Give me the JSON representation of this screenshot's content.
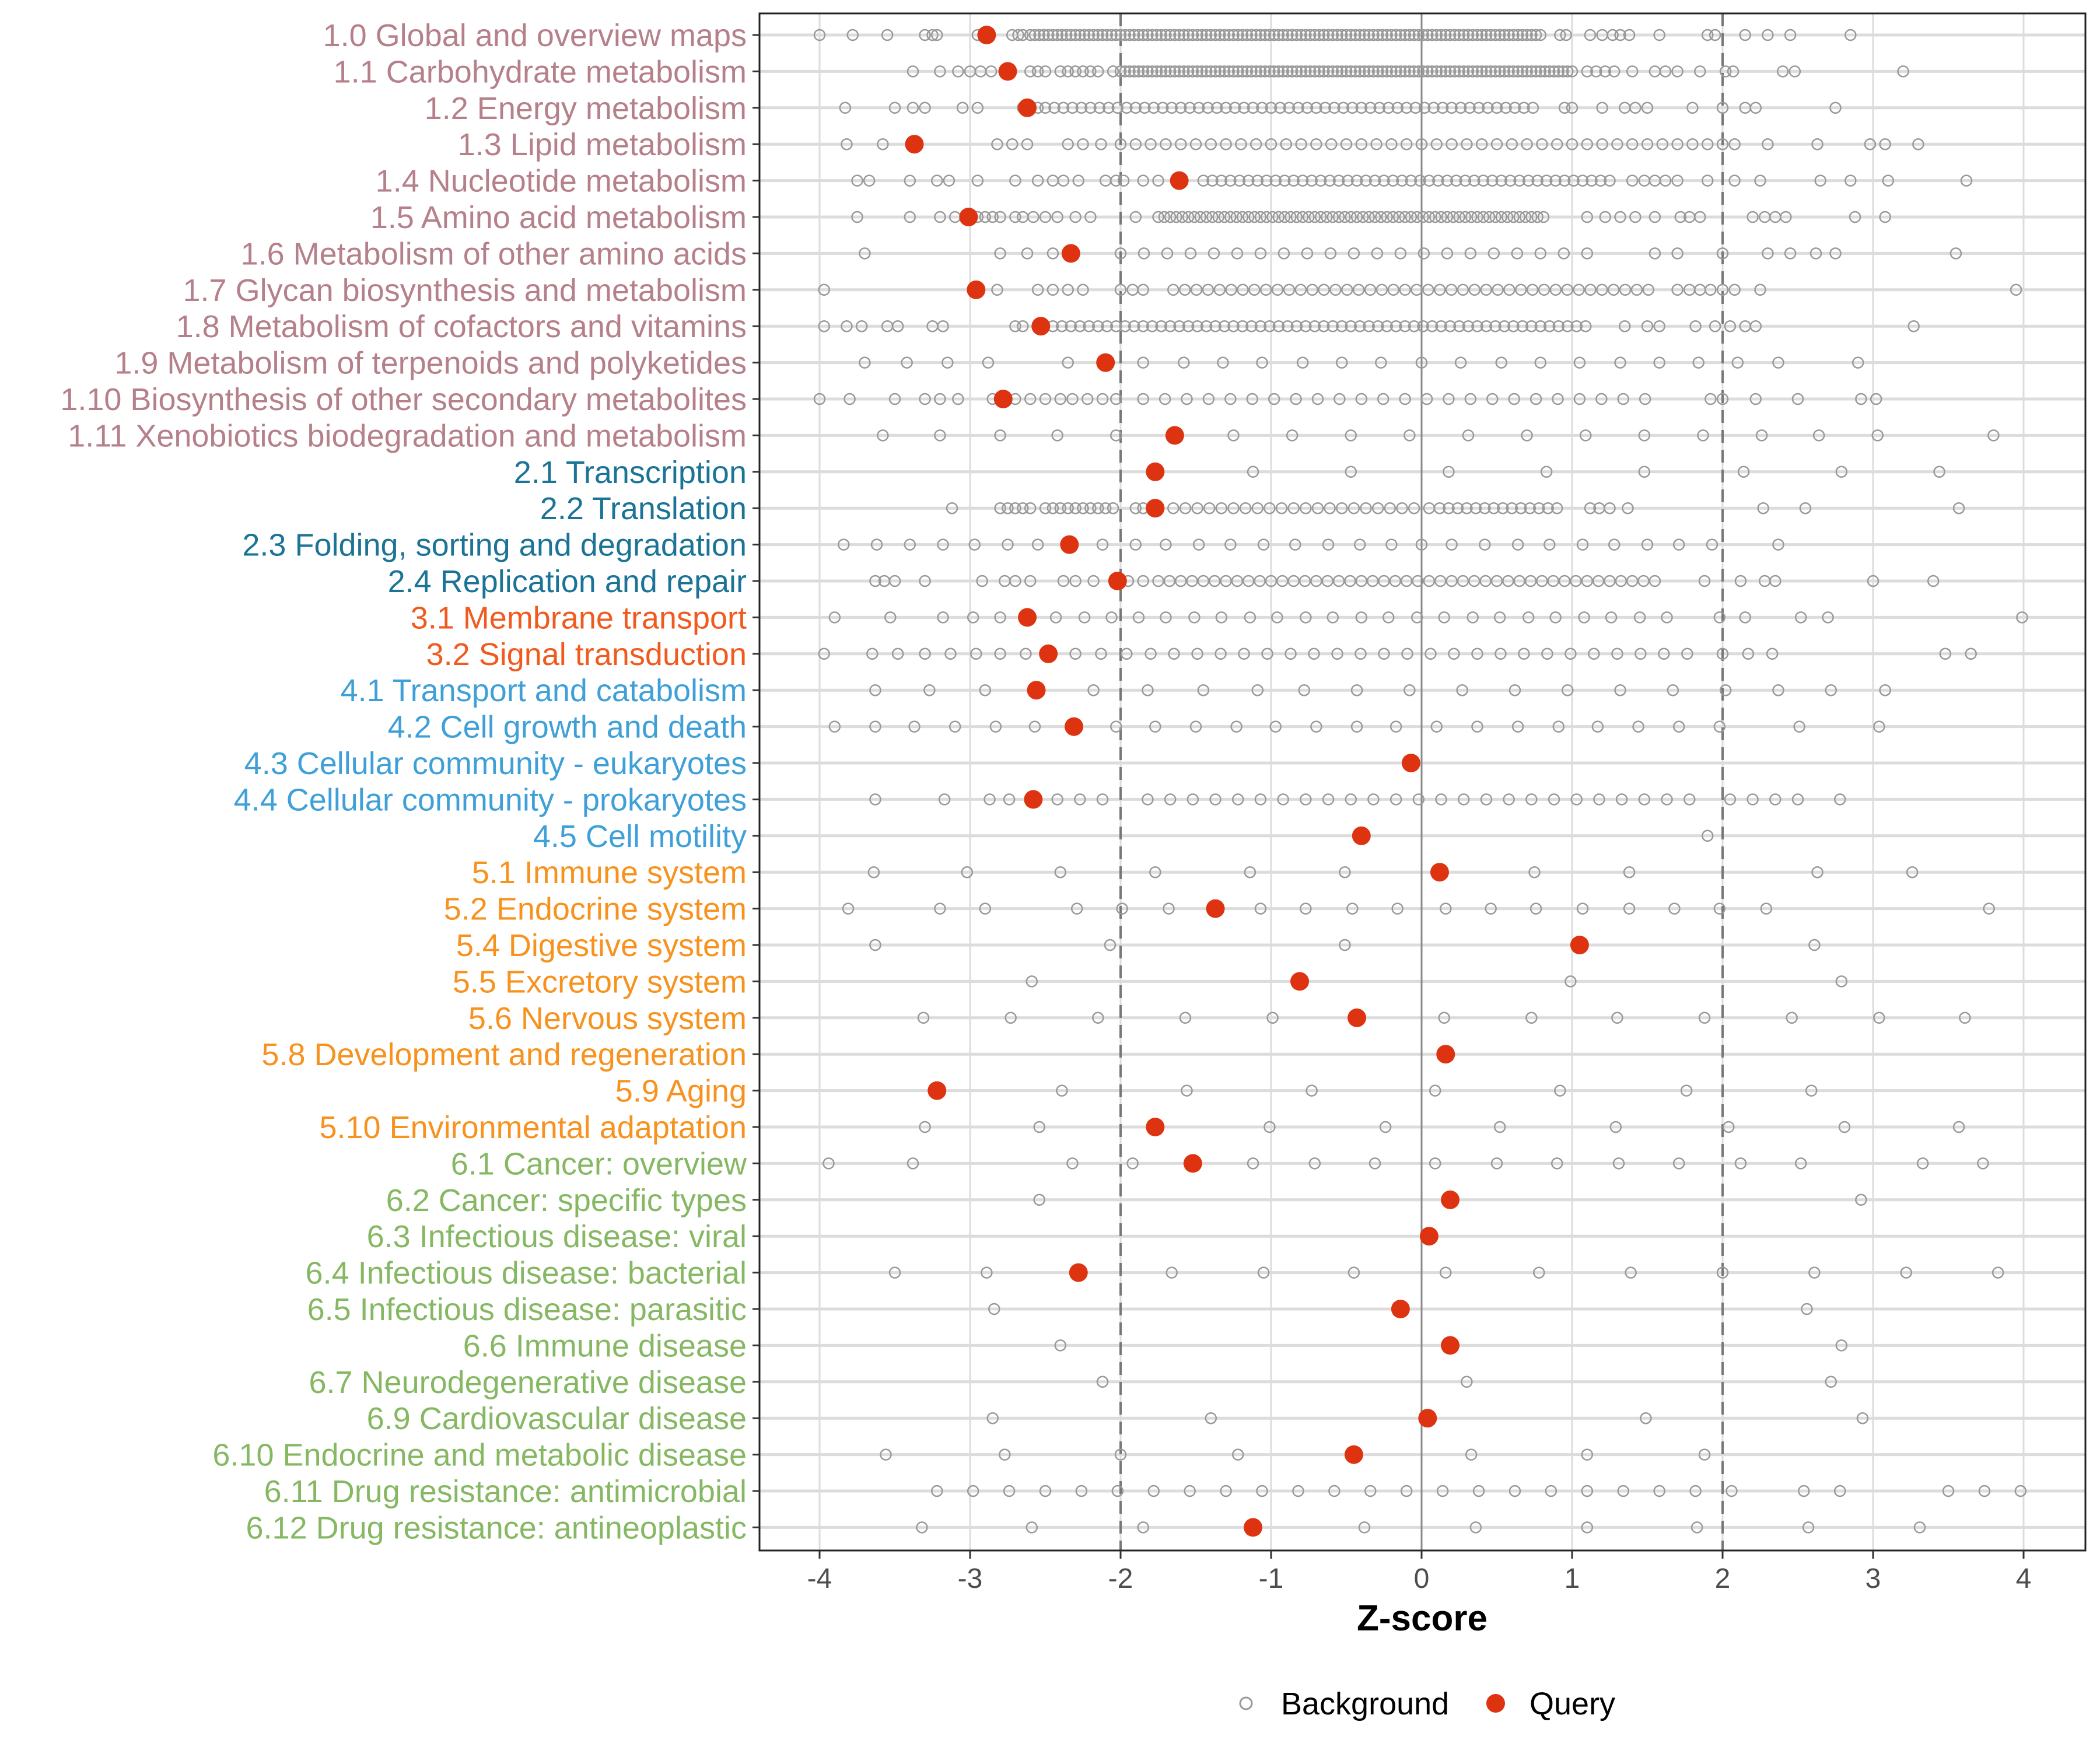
{
  "chart_data": {
    "type": "scatter",
    "xlabel": "Z-score",
    "xlim": [
      -4.2,
      4.2
    ],
    "xticks": [
      "-4",
      "-3",
      "-2",
      "-1",
      "0",
      "1",
      "2",
      "3",
      "4"
    ],
    "reference_lines": {
      "dashed": [
        -2,
        2
      ],
      "solid": [
        0
      ]
    },
    "grid": true,
    "legend": {
      "position": "bottom",
      "entries": [
        "Background",
        "Query"
      ]
    },
    "colors": {
      "background": "#999999",
      "query": "#dd3311",
      "groups": {
        "1": "#b5808a",
        "2": "#1b7396",
        "3": "#f05a1e",
        "4": "#3fa0d8",
        "5": "#f7921e",
        "6": "#86b863"
      }
    },
    "rows": [
      {
        "label": "1.0 Global and overview maps",
        "group": "1",
        "query": -2.89,
        "background": [
          -4.0,
          -3.78,
          -3.55,
          -3.3,
          -3.25,
          -3.22,
          -2.95,
          -2.72,
          -2.68,
          -2.65,
          0.92,
          0.96,
          1.12,
          1.2,
          1.27,
          1.32,
          1.38,
          1.58,
          1.9,
          1.95,
          2.15,
          2.3,
          2.45,
          2.85
        ],
        "dense": [
          [
            -2.6,
            0.8,
            0.03
          ]
        ]
      },
      {
        "label": "1.1 Carbohydrate metabolism",
        "group": "1",
        "query": -2.75,
        "background": [
          -3.38,
          -3.2,
          -3.08,
          -3.0,
          -2.93,
          -2.86,
          -2.6,
          -2.55,
          -2.5,
          -2.4,
          -2.35,
          -2.3,
          -2.25,
          -2.2,
          -2.15,
          -2.05,
          1.1,
          1.16,
          1.22,
          1.28,
          1.4,
          1.55,
          1.62,
          1.7,
          1.85,
          2.02,
          2.07,
          2.4,
          2.48,
          3.2
        ],
        "dense": [
          [
            -2.0,
            1.0,
            0.03
          ]
        ]
      },
      {
        "label": "1.2 Energy metabolism",
        "group": "1",
        "query": -2.62,
        "background": [
          -3.83,
          -3.5,
          -3.38,
          -3.3,
          -3.05,
          -2.95,
          -2.65,
          -2.55,
          0.95,
          1.0,
          1.2,
          1.35,
          1.42,
          1.5,
          1.8,
          2.0,
          2.15,
          2.22,
          2.75
        ],
        "dense": [
          [
            -2.5,
            0.75,
            0.06
          ]
        ]
      },
      {
        "label": "1.3 Lipid metabolism",
        "group": "1",
        "query": -3.37,
        "background": [
          -3.82,
          -3.58,
          -2.82,
          -2.72,
          -2.62,
          -2.35,
          -2.25,
          -2.13,
          -2.0,
          2.08,
          2.3,
          2.63,
          2.98,
          3.08,
          3.3
        ],
        "dense": [
          [
            -1.9,
            2.0,
            0.1
          ]
        ]
      },
      {
        "label": "1.4 Nucleotide metabolism",
        "group": "1",
        "query": -1.61,
        "background": [
          -3.75,
          -3.67,
          -3.4,
          -3.22,
          -3.14,
          -2.95,
          -2.7,
          -2.55,
          -2.45,
          -2.38,
          -2.28,
          -2.1,
          -2.03,
          -1.98,
          -1.85,
          -1.75,
          1.4,
          1.48,
          1.55,
          1.62,
          1.7,
          1.9,
          2.08,
          2.25,
          2.65,
          2.85,
          3.1,
          3.62
        ],
        "dense": [
          [
            -1.45,
            1.25,
            0.06
          ]
        ]
      },
      {
        "label": "1.5 Amino acid metabolism",
        "group": "1",
        "query": -3.01,
        "background": [
          -3.75,
          -3.4,
          -3.2,
          -3.1,
          -2.95,
          -2.9,
          -2.85,
          -2.8,
          -2.7,
          -2.65,
          -2.58,
          -2.5,
          -2.42,
          -2.3,
          -2.2,
          -1.9,
          1.1,
          1.22,
          1.32,
          1.42,
          1.55,
          1.72,
          1.78,
          1.85,
          2.2,
          2.28,
          2.35,
          2.42,
          2.88,
          3.08
        ],
        "dense": [
          [
            -1.75,
            0.82,
            0.04
          ]
        ]
      },
      {
        "label": "1.6 Metabolism of other amino acids",
        "group": "1",
        "query": -2.33,
        "background": [
          -3.7,
          -2.8,
          -2.62,
          -2.45,
          1.55,
          1.7,
          2.0,
          2.3,
          2.45,
          2.62,
          2.75,
          3.55
        ],
        "dense": [
          [
            -2.0,
            1.25,
            0.155
          ]
        ]
      },
      {
        "label": "1.7 Glycan biosynthesis and metabolism",
        "group": "1",
        "query": -2.96,
        "background": [
          -3.97,
          -2.82,
          -2.55,
          -2.45,
          -2.35,
          -2.25,
          -2.0,
          -1.92,
          -1.85,
          1.7,
          1.78,
          1.85,
          1.92,
          2.0,
          2.08,
          2.25,
          3.95
        ],
        "dense": [
          [
            -1.65,
            1.55,
            0.077
          ]
        ]
      },
      {
        "label": "1.8 Metabolism of cofactors and vitamins",
        "group": "1",
        "query": -2.53,
        "background": [
          -3.97,
          -3.82,
          -3.72,
          -3.55,
          -3.48,
          -3.25,
          -3.18,
          -2.7,
          -2.65,
          1.35,
          1.5,
          1.58,
          1.82,
          1.95,
          2.05,
          2.15,
          2.22,
          3.27
        ],
        "dense": [
          [
            -2.45,
            1.1,
            0.06
          ]
        ]
      },
      {
        "label": "1.9 Metabolism of terpenoids and polyketides",
        "group": "1",
        "query": -2.1,
        "background": [
          -3.7,
          -3.42,
          -3.15,
          -2.88,
          -2.35,
          -1.85,
          -1.58,
          -1.32,
          -1.06,
          -0.79,
          -0.53,
          -0.27,
          0.0,
          0.26,
          0.53,
          0.79,
          1.05,
          1.32,
          1.58,
          1.84,
          2.1,
          2.37,
          2.9
        ]
      },
      {
        "label": "1.10 Biosynthesis of other secondary metabolites",
        "group": "1",
        "query": -2.78,
        "background": [
          -4.0,
          -3.8,
          -3.5,
          -3.3,
          -3.2,
          -3.08,
          -2.85,
          -2.7,
          -2.6,
          -2.5,
          -2.4,
          -2.32,
          -2.22,
          -2.12,
          -2.03,
          1.92,
          2.0,
          2.22,
          2.5,
          2.92,
          3.02
        ],
        "dense": [
          [
            -1.85,
            1.6,
            0.145
          ]
        ]
      },
      {
        "label": "1.11 Xenobiotics biodegradation and metabolism",
        "group": "1",
        "query": -1.64,
        "background": [
          -3.58,
          -3.2,
          -2.8,
          -2.42,
          -2.03,
          -1.25,
          -0.86,
          -0.47,
          -0.08,
          0.31,
          0.7,
          1.09,
          1.48,
          1.87,
          2.26,
          2.64,
          3.03,
          3.8
        ]
      },
      {
        "label": "2.1 Transcription",
        "group": "2",
        "query": -1.77,
        "background": [
          -1.12,
          -0.47,
          0.18,
          0.83,
          1.48,
          2.14,
          2.79,
          3.44
        ]
      },
      {
        "label": "2.2 Translation",
        "group": "2",
        "query": -1.77,
        "background": [
          -3.12,
          -2.8,
          -2.75,
          -2.7,
          -2.65,
          -2.6,
          -2.5,
          -2.45,
          -2.4,
          -2.35,
          -2.3,
          -2.25,
          -2.2,
          -2.15,
          -2.1,
          -2.05,
          -1.9,
          -1.85,
          0.05,
          1.12,
          1.18,
          1.25,
          1.37,
          2.27,
          2.55,
          3.57
        ],
        "dense": [
          [
            -1.65,
            -0.05,
            0.08
          ],
          [
            0.12,
            0.95,
            0.06
          ]
        ]
      },
      {
        "label": "2.3 Folding, sorting and degradation",
        "group": "2",
        "query": -2.34,
        "background": [
          -3.84,
          -3.62,
          -3.4,
          -3.18,
          -2.97,
          -2.75,
          -2.55,
          -2.33,
          -2.12,
          -1.9,
          -1.7,
          -1.48,
          -1.27,
          -1.05,
          -0.84,
          -0.62,
          -0.41,
          -0.2,
          0.0,
          0.2,
          0.42,
          0.64,
          0.85,
          1.07,
          1.28,
          1.5,
          1.71,
          1.93,
          2.37
        ]
      },
      {
        "label": "2.4 Replication and repair",
        "group": "2",
        "query": -2.02,
        "background": [
          -3.63,
          -3.57,
          -3.5,
          -3.3,
          -2.92,
          -2.77,
          -2.7,
          -2.6,
          -2.38,
          -2.3,
          -2.18,
          -1.95,
          -1.85,
          1.88,
          2.12,
          2.28,
          2.35,
          3.0,
          3.4
        ],
        "dense": [
          [
            -1.75,
            1.55,
            0.075
          ]
        ]
      },
      {
        "label": "3.1 Membrane transport",
        "group": "3",
        "query": -2.62,
        "background": [
          -3.9,
          -3.53,
          -3.18,
          -2.98,
          -2.8,
          -2.43,
          -2.24,
          -2.06,
          -1.88,
          -1.7,
          -1.51,
          -1.33,
          -1.14,
          -0.96,
          -0.77,
          -0.59,
          -0.4,
          -0.22,
          -0.03,
          0.15,
          0.34,
          0.52,
          0.71,
          0.89,
          1.08,
          1.26,
          1.45,
          1.63,
          1.98,
          2.15,
          2.52,
          2.7,
          3.99
        ]
      },
      {
        "label": "3.2 Signal transduction",
        "group": "3",
        "query": -2.48,
        "background": [
          -3.97,
          -3.65,
          -3.48,
          -3.3,
          -3.13,
          -2.96,
          -2.8,
          -2.63,
          -2.3,
          -2.13,
          -1.96,
          2.0,
          2.17,
          2.33,
          3.48,
          3.65
        ],
        "dense": [
          [
            -1.8,
            1.85,
            0.155
          ]
        ]
      },
      {
        "label": "4.1 Transport and catabolism",
        "group": "4",
        "query": -2.56,
        "background": [
          -3.63,
          -3.27,
          -2.9,
          -2.18,
          -1.82,
          -1.45,
          -1.09,
          -0.78,
          -0.43,
          -0.08,
          0.27,
          0.62,
          0.97,
          1.32,
          1.67,
          2.02,
          2.37,
          2.72,
          3.08
        ]
      },
      {
        "label": "4.2 Cell growth and death",
        "group": "4",
        "query": -2.31,
        "background": [
          -3.9,
          -3.63,
          -3.37,
          -3.1,
          -2.83,
          -2.57,
          -2.03,
          -1.77,
          -1.5,
          -1.23,
          -0.97,
          -0.7,
          -0.43,
          -0.17,
          0.1,
          0.37,
          0.64,
          0.91,
          1.17,
          1.44,
          1.71,
          1.98,
          2.51,
          3.04
        ]
      },
      {
        "label": "4.3 Cellular community - eukaryotes",
        "group": "4",
        "query": -0.07,
        "background": []
      },
      {
        "label": "4.4 Cellular community - prokaryotes",
        "group": "4",
        "query": -2.58,
        "background": [
          -3.63,
          -3.17,
          -2.87,
          -2.74,
          -2.42,
          -2.27,
          -2.12,
          2.05,
          2.2,
          2.35,
          2.5,
          2.78
        ],
        "dense": [
          [
            -1.82,
            1.9,
            0.15
          ]
        ]
      },
      {
        "label": "4.5 Cell motility",
        "group": "4",
        "query": -0.4,
        "background": [
          1.9
        ]
      },
      {
        "label": "5.1 Immune system",
        "group": "5",
        "query": 0.12,
        "background": [
          -3.64,
          -3.02,
          -2.4,
          -1.77,
          -1.14,
          -0.51,
          0.75,
          1.38,
          2.63,
          3.26
        ]
      },
      {
        "label": "5.2 Endocrine system",
        "group": "5",
        "query": -1.37,
        "background": [
          -3.81,
          -3.2,
          -2.9,
          -2.29,
          -1.99,
          -1.68,
          -1.07,
          -0.77,
          -0.46,
          -0.16,
          0.16,
          0.46,
          0.76,
          1.07,
          1.38,
          1.68,
          1.98,
          2.29,
          3.77
        ]
      },
      {
        "label": "5.4 Digestive system",
        "group": "5",
        "query": 1.05,
        "background": [
          -3.63,
          -2.07,
          -0.51,
          2.61
        ]
      },
      {
        "label": "5.5 Excretory system",
        "group": "5",
        "query": -0.81,
        "background": [
          -2.59,
          0.99,
          2.79
        ]
      },
      {
        "label": "5.6 Nervous system",
        "group": "5",
        "query": -0.43,
        "background": [
          -3.31,
          -2.73,
          -2.15,
          -1.57,
          -0.99,
          0.15,
          0.73,
          1.3,
          1.88,
          2.46,
          3.04,
          3.61
        ]
      },
      {
        "label": "5.8 Development and regeneration",
        "group": "5",
        "query": 0.16,
        "background": []
      },
      {
        "label": "5.9 Aging",
        "group": "5",
        "query": -3.22,
        "background": [
          -2.39,
          -1.56,
          -0.73,
          0.09,
          0.92,
          1.76,
          2.59
        ]
      },
      {
        "label": "5.10 Environmental adaptation",
        "group": "5",
        "query": -1.77,
        "background": [
          -3.3,
          -2.54,
          -1.78,
          -1.01,
          -0.24,
          0.52,
          1.29,
          2.04,
          2.81,
          3.57
        ]
      },
      {
        "label": "6.1 Cancer: overview",
        "group": "6",
        "query": -1.52,
        "background": [
          -3.94,
          -3.38,
          -2.32,
          -1.92,
          -1.12,
          -0.71,
          -0.31,
          0.09,
          0.5,
          0.9,
          1.31,
          1.71,
          2.12,
          2.52,
          3.33,
          3.73
        ]
      },
      {
        "label": "6.2 Cancer: specific types",
        "group": "6",
        "query": 0.19,
        "background": [
          -2.54,
          2.92
        ]
      },
      {
        "label": "6.3 Infectious disease: viral",
        "group": "6",
        "query": 0.05,
        "background": []
      },
      {
        "label": "6.4 Infectious disease: bacterial",
        "group": "6",
        "query": -2.28,
        "background": [
          -3.5,
          -2.89,
          -2.27,
          -1.66,
          -1.05,
          -0.45,
          0.16,
          0.78,
          1.39,
          2.0,
          2.61,
          3.22,
          3.83
        ]
      },
      {
        "label": "6.5 Infectious disease: parasitic",
        "group": "6",
        "query": -0.14,
        "background": [
          -2.84,
          2.56
        ]
      },
      {
        "label": "6.6 Immune disease",
        "group": "6",
        "query": 0.19,
        "background": [
          -2.4,
          2.79
        ]
      },
      {
        "label": "6.7 Neurodegenerative disease",
        "group": "6",
        "query": null,
        "background": [
          -2.12,
          0.3,
          2.72
        ]
      },
      {
        "label": "6.9 Cardiovascular disease",
        "group": "6",
        "query": 0.04,
        "background": [
          -2.85,
          -1.4,
          1.49,
          2.93
        ]
      },
      {
        "label": "6.10 Endocrine and metabolic disease",
        "group": "6",
        "query": -0.45,
        "background": [
          -3.56,
          -2.77,
          -2.0,
          -1.22,
          0.33,
          1.1,
          1.88
        ]
      },
      {
        "label": "6.11 Drug resistance: antimicrobial",
        "group": "6",
        "query": null,
        "background": [
          -3.22,
          -2.98,
          -2.74,
          -2.5,
          -2.26,
          -2.02,
          -1.78,
          -1.54,
          -1.3,
          -1.06,
          -0.82,
          -0.58,
          -0.34,
          -0.1,
          0.14,
          0.38,
          0.62,
          0.86,
          1.1,
          1.34,
          1.58,
          1.82,
          2.06,
          2.54,
          2.78,
          3.5,
          3.74,
          3.98
        ]
      },
      {
        "label": "6.12 Drug resistance: antineoplastic",
        "group": "6",
        "query": -1.12,
        "background": [
          -3.32,
          -2.59,
          -1.85,
          -0.38,
          0.36,
          1.1,
          1.83,
          2.57,
          3.31
        ]
      }
    ]
  }
}
